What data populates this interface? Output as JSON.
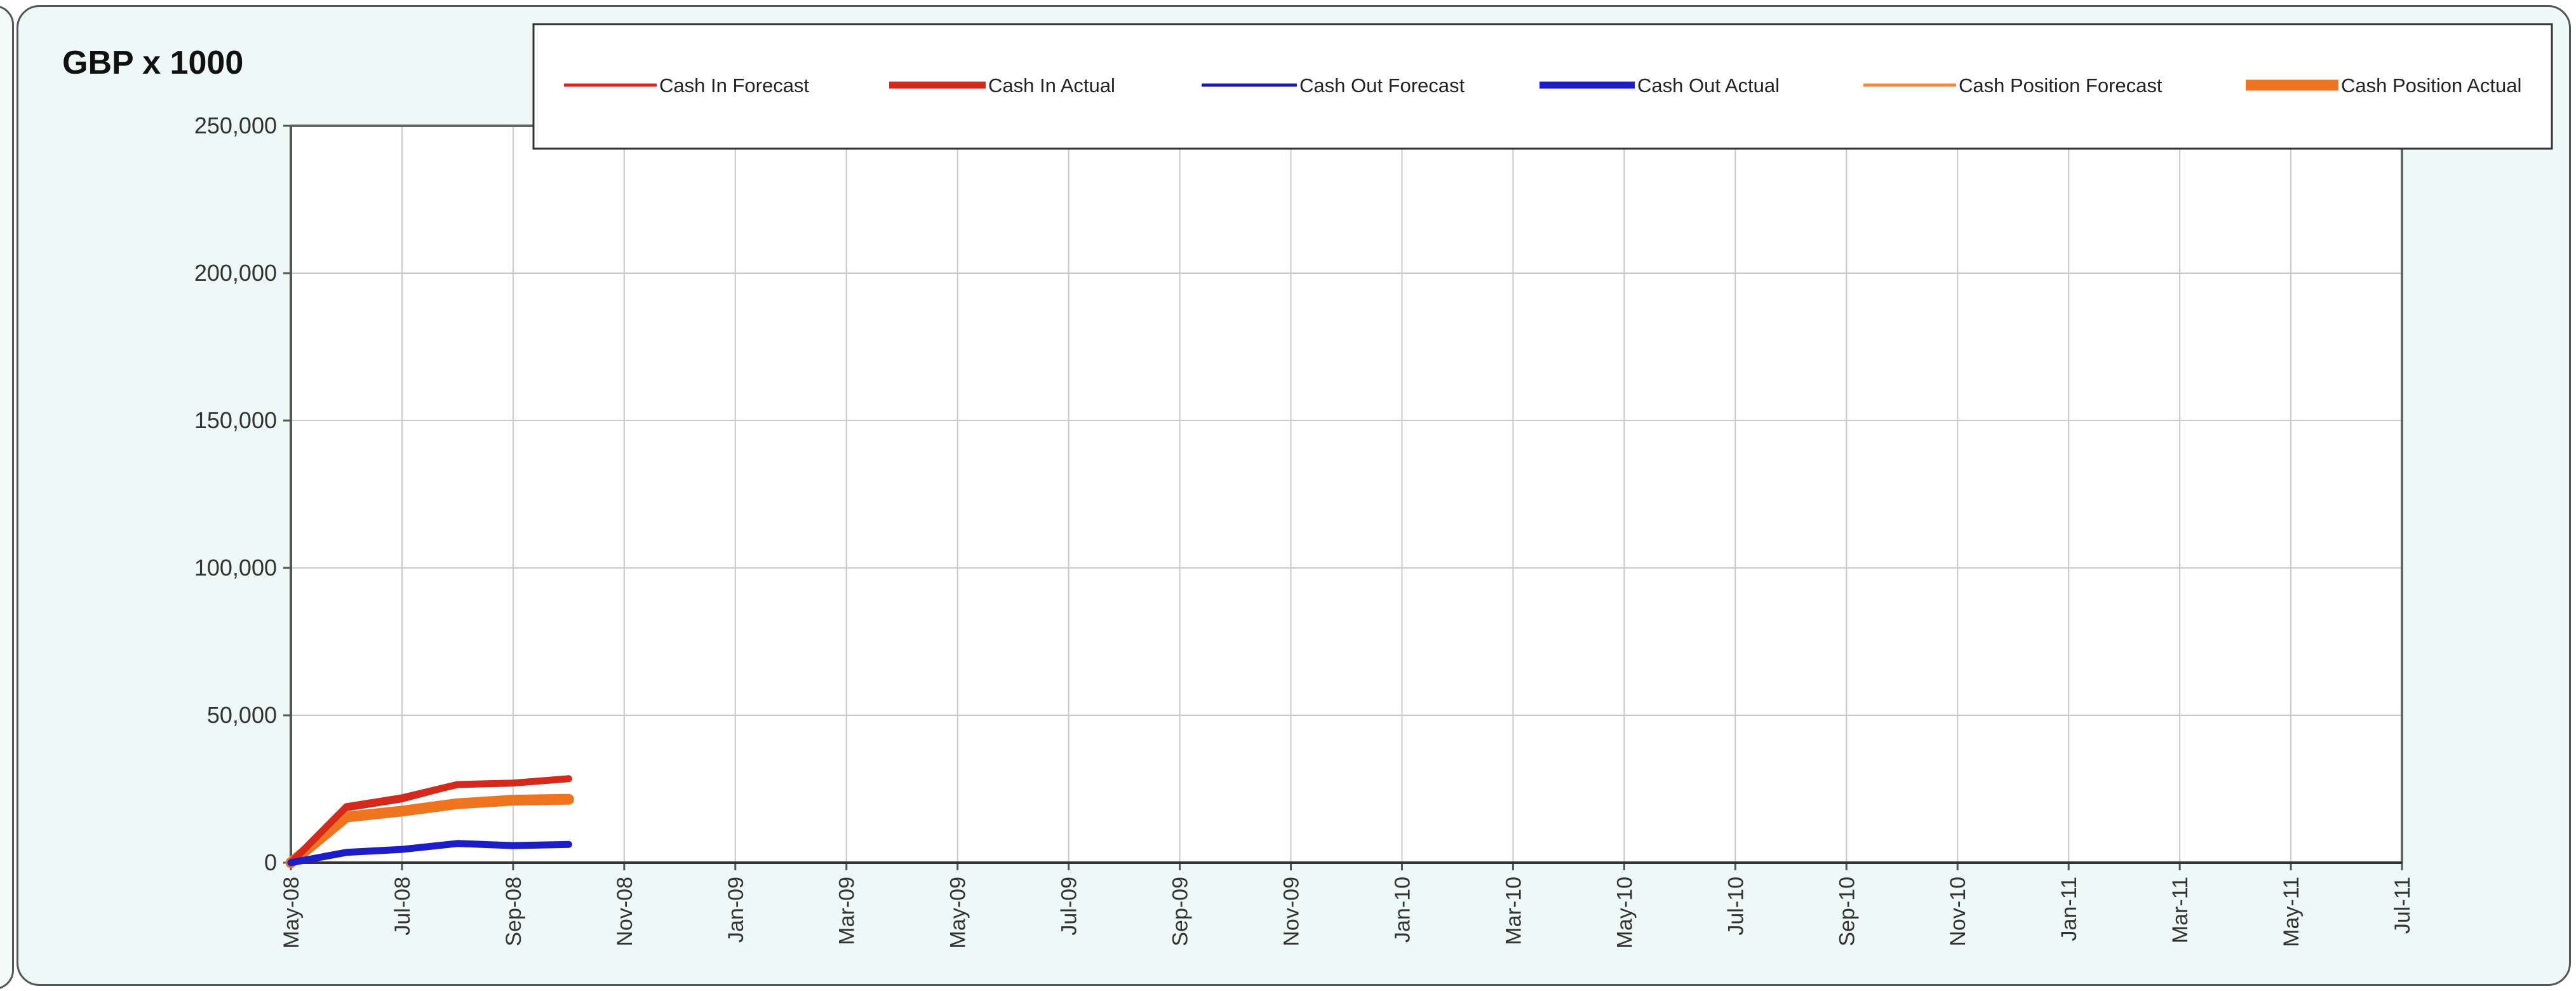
{
  "chart_data": {
    "type": "line",
    "unit_label": "GBP x 1000",
    "ylim": [
      0,
      250000
    ],
    "y_ticks": [
      0,
      50000,
      100000,
      150000,
      200000,
      250000
    ],
    "y_tick_labels": [
      "0",
      "50,000",
      "100,000",
      "150,000",
      "200,000",
      "250,000"
    ],
    "x_range": [
      "2008-05-01",
      "2011-07-01"
    ],
    "x_tick_labels": [
      "May-08",
      "Jul-08",
      "Sep-08",
      "Nov-08",
      "Jan-09",
      "Mar-09",
      "May-09",
      "Jul-09",
      "Sep-09",
      "Nov-09",
      "Jan-10",
      "Mar-10",
      "May-10",
      "Jul-10",
      "Sep-10",
      "Nov-10",
      "Jan-11",
      "Mar-11",
      "May-11",
      "Jul-11"
    ],
    "grid": true,
    "legend_position": "top",
    "series": [
      {
        "name": "Cash In Forecast",
        "color": "#cc2b1d",
        "style": "thin",
        "x": [
          "2008-05-01",
          "2008-06-01",
          "2008-07-01",
          "2008-08-01",
          "2008-09-01",
          "2008-10-01"
        ],
        "values": [
          0,
          18000,
          21000,
          26000,
          26500,
          28000
        ]
      },
      {
        "name": "Cash In Actual",
        "color": "#d42a1c",
        "style": "thick",
        "x": [
          "2008-05-01",
          "2008-06-01",
          "2008-07-01",
          "2008-08-01",
          "2008-09-01",
          "2008-10-01"
        ],
        "values": [
          0,
          19000,
          22000,
          26500,
          27000,
          28500
        ]
      },
      {
        "name": "Cash Out Forecast",
        "color": "#1a1aa6",
        "style": "thin",
        "x": [
          "2008-05-01",
          "2008-06-01",
          "2008-07-01",
          "2008-08-01",
          "2008-09-01",
          "2008-10-01"
        ],
        "values": [
          0,
          3500,
          4500,
          6000,
          5500,
          6000
        ]
      },
      {
        "name": "Cash Out Actual",
        "color": "#1c1cc8",
        "style": "thick",
        "x": [
          "2008-05-01",
          "2008-06-01",
          "2008-07-01",
          "2008-08-01",
          "2008-09-01",
          "2008-10-01"
        ],
        "values": [
          0,
          3500,
          4500,
          6500,
          5800,
          6200
        ]
      },
      {
        "name": "Cash Position Forecast",
        "color": "#f08a3c",
        "style": "thin",
        "x": [
          "2008-05-01",
          "2008-06-01",
          "2008-07-01",
          "2008-08-01",
          "2008-09-01",
          "2008-10-01"
        ],
        "values": [
          0,
          15000,
          17500,
          20500,
          21500,
          22000
        ]
      },
      {
        "name": "Cash Position Actual",
        "color": "#ef7420",
        "style": "xthick",
        "x": [
          "2008-05-01",
          "2008-06-01",
          "2008-07-01",
          "2008-08-01",
          "2008-09-01",
          "2008-10-01"
        ],
        "values": [
          0,
          15500,
          17500,
          20000,
          21200,
          21500
        ]
      }
    ]
  }
}
